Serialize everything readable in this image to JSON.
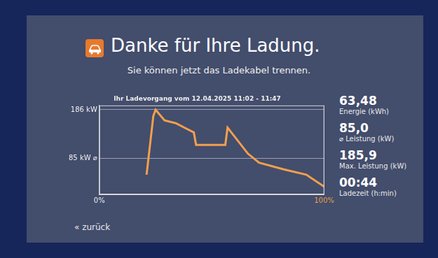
{
  "header": {
    "title": "Danke für Ihre Ladung.",
    "subtitle": "Sie können jetzt das Ladekabel trennen."
  },
  "chart_data": {
    "type": "line",
    "title": "Ihr Ladevorgang vom 12.04.2025 11:02 - 11:47",
    "x": [
      21,
      24,
      25,
      29,
      34,
      39,
      42,
      43,
      56,
      57,
      66,
      71,
      82,
      92,
      100
    ],
    "values": [
      51,
      173,
      186,
      164,
      158,
      146,
      139,
      113,
      113,
      149,
      95,
      76,
      62,
      51,
      26
    ],
    "color": "#f2a04c",
    "xlim": [
      0,
      100
    ],
    "xticks": [
      {
        "value": 0,
        "label": "0%"
      },
      {
        "value": 100,
        "label": "100%"
      }
    ],
    "ylim": [
      10,
      195
    ],
    "yticks": [
      {
        "value": 85,
        "label": "85 kW ⌀"
      },
      {
        "value": 186,
        "label": "186 kW"
      }
    ],
    "grid": true
  },
  "stats": [
    {
      "value": "63,48",
      "label": "Energie (kWh)"
    },
    {
      "value": "85,0",
      "label": "⌀ Leistung (kW)"
    },
    {
      "value": "185,9",
      "label": "Max. Leistung (kW)"
    },
    {
      "value": "00:44",
      "label": "Ladezeit (h:min)"
    }
  ],
  "back": "« zurück"
}
